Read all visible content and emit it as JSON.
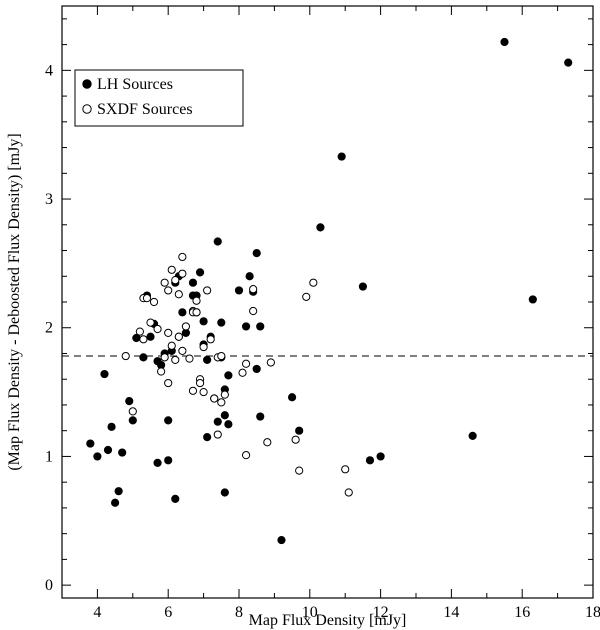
{
  "chart_data": {
    "type": "scatter",
    "title": "",
    "xlabel": "Map Flux Density [mJy]",
    "ylabel": "(Map Flux Density - Deboosted Flux Density) [mJy]",
    "xlim": [
      3,
      18
    ],
    "ylim": [
      -0.1,
      4.5
    ],
    "xticks": [
      4,
      6,
      8,
      10,
      12,
      14,
      16,
      18
    ],
    "yticks": [
      0,
      1,
      2,
      3,
      4
    ],
    "reference_line": {
      "y": 1.78,
      "style": "dashed"
    },
    "legend": {
      "placement": "top-left"
    },
    "series": [
      {
        "name": "LH Sources",
        "marker": "filled-circle",
        "color": "#000000",
        "points": [
          [
            3.8,
            1.1
          ],
          [
            4.0,
            1.0
          ],
          [
            4.2,
            1.64
          ],
          [
            4.3,
            1.05
          ],
          [
            4.4,
            1.23
          ],
          [
            4.5,
            0.64
          ],
          [
            4.6,
            0.73
          ],
          [
            4.7,
            1.03
          ],
          [
            4.9,
            1.43
          ],
          [
            5.0,
            1.28
          ],
          [
            5.1,
            1.92
          ],
          [
            5.3,
            1.77
          ],
          [
            5.4,
            2.25
          ],
          [
            5.5,
            1.93
          ],
          [
            5.6,
            2.03
          ],
          [
            5.7,
            1.74
          ],
          [
            5.7,
            0.95
          ],
          [
            5.8,
            1.71
          ],
          [
            5.9,
            1.8
          ],
          [
            6.0,
            0.97
          ],
          [
            6.0,
            1.28
          ],
          [
            6.1,
            1.82
          ],
          [
            6.2,
            0.67
          ],
          [
            6.2,
            2.35
          ],
          [
            6.3,
            2.4
          ],
          [
            6.3,
            1.93
          ],
          [
            6.4,
            2.12
          ],
          [
            6.5,
            1.96
          ],
          [
            6.7,
            2.35
          ],
          [
            6.7,
            2.25
          ],
          [
            6.8,
            2.25
          ],
          [
            6.8,
            2.12
          ],
          [
            6.9,
            2.43
          ],
          [
            7.0,
            2.05
          ],
          [
            7.0,
            1.87
          ],
          [
            7.1,
            1.75
          ],
          [
            7.1,
            1.15
          ],
          [
            7.2,
            1.93
          ],
          [
            7.3,
            1.45
          ],
          [
            7.4,
            2.67
          ],
          [
            7.4,
            1.27
          ],
          [
            7.5,
            2.04
          ],
          [
            7.5,
            1.77
          ],
          [
            7.6,
            1.52
          ],
          [
            7.6,
            1.32
          ],
          [
            7.6,
            0.72
          ],
          [
            7.7,
            1.25
          ],
          [
            7.7,
            1.63
          ],
          [
            8.0,
            2.29
          ],
          [
            8.2,
            2.01
          ],
          [
            8.3,
            2.4
          ],
          [
            8.4,
            2.28
          ],
          [
            8.5,
            2.58
          ],
          [
            8.5,
            1.68
          ],
          [
            8.6,
            2.01
          ],
          [
            8.6,
            1.31
          ],
          [
            9.5,
            1.46
          ],
          [
            9.7,
            1.2
          ],
          [
            9.2,
            0.35
          ],
          [
            10.3,
            2.78
          ],
          [
            10.9,
            3.33
          ],
          [
            11.5,
            2.32
          ],
          [
            11.7,
            0.97
          ],
          [
            12.0,
            1.0
          ],
          [
            14.6,
            1.16
          ],
          [
            15.5,
            4.22
          ],
          [
            16.3,
            2.22
          ],
          [
            17.3,
            4.06
          ]
        ]
      },
      {
        "name": "SXDF Sources",
        "marker": "open-circle",
        "color": "#000000",
        "points": [
          [
            4.8,
            1.78
          ],
          [
            5.0,
            1.35
          ],
          [
            5.2,
            1.97
          ],
          [
            5.3,
            1.91
          ],
          [
            5.3,
            2.23
          ],
          [
            5.4,
            2.23
          ],
          [
            5.5,
            2.04
          ],
          [
            5.6,
            2.2
          ],
          [
            5.7,
            1.99
          ],
          [
            5.8,
            1.66
          ],
          [
            5.9,
            2.35
          ],
          [
            5.9,
            1.77
          ],
          [
            6.0,
            2.29
          ],
          [
            6.0,
            1.57
          ],
          [
            6.0,
            1.96
          ],
          [
            6.1,
            2.45
          ],
          [
            6.1,
            1.86
          ],
          [
            6.2,
            2.37
          ],
          [
            6.2,
            1.75
          ],
          [
            6.3,
            1.93
          ],
          [
            6.3,
            2.26
          ],
          [
            6.4,
            2.42
          ],
          [
            6.4,
            2.55
          ],
          [
            6.4,
            1.82
          ],
          [
            6.5,
            2.01
          ],
          [
            6.6,
            1.76
          ],
          [
            6.7,
            2.13
          ],
          [
            6.7,
            2.12
          ],
          [
            6.7,
            1.51
          ],
          [
            6.8,
            2.21
          ],
          [
            6.8,
            2.12
          ],
          [
            6.9,
            1.6
          ],
          [
            6.9,
            1.57
          ],
          [
            7.0,
            1.5
          ],
          [
            7.0,
            1.85
          ],
          [
            7.1,
            2.29
          ],
          [
            7.2,
            1.91
          ],
          [
            7.3,
            1.45
          ],
          [
            7.4,
            1.77
          ],
          [
            7.4,
            1.17
          ],
          [
            7.5,
            1.78
          ],
          [
            7.5,
            1.42
          ],
          [
            7.6,
            1.48
          ],
          [
            8.1,
            1.65
          ],
          [
            8.2,
            1.72
          ],
          [
            8.2,
            1.01
          ],
          [
            8.4,
            2.3
          ],
          [
            8.4,
            2.13
          ],
          [
            8.8,
            1.11
          ],
          [
            8.9,
            1.73
          ],
          [
            9.6,
            1.13
          ],
          [
            9.7,
            0.89
          ],
          [
            9.9,
            2.24
          ],
          [
            10.1,
            2.35
          ],
          [
            11.0,
            0.9
          ],
          [
            11.1,
            0.72
          ]
        ]
      }
    ]
  }
}
